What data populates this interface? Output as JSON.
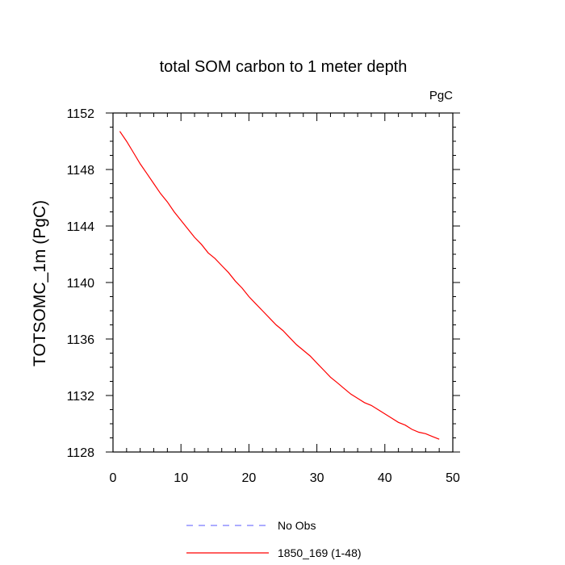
{
  "chart_data": {
    "type": "line",
    "title": "total SOM carbon to 1 meter depth",
    "units": "PgC",
    "xlabel": "",
    "ylabel": "TOTSOMC_1m  (PgC)",
    "xlim": [
      0,
      50
    ],
    "ylim": [
      1128,
      1152
    ],
    "xticks": [
      0,
      10,
      20,
      30,
      40,
      50
    ],
    "yticks": [
      1128,
      1132,
      1136,
      1140,
      1144,
      1148,
      1152
    ],
    "grid": false,
    "legend_position": "bottom",
    "series": [
      {
        "name": "No Obs",
        "color": "#7b7bff",
        "dash": true,
        "x": [],
        "values": []
      },
      {
        "name": "1850_169 (1-48)",
        "color": "#ff0000",
        "dash": false,
        "x": [
          1,
          2,
          3,
          4,
          5,
          6,
          7,
          8,
          9,
          10,
          11,
          12,
          13,
          14,
          15,
          16,
          17,
          18,
          19,
          20,
          21,
          22,
          23,
          24,
          25,
          26,
          27,
          28,
          29,
          30,
          31,
          32,
          33,
          34,
          35,
          36,
          37,
          38,
          39,
          40,
          41,
          42,
          43,
          44,
          45,
          46,
          47,
          48
        ],
        "values": [
          1150.7,
          1150.0,
          1149.2,
          1148.4,
          1147.7,
          1147.0,
          1146.3,
          1145.7,
          1145.0,
          1144.4,
          1143.8,
          1143.2,
          1142.7,
          1142.1,
          1141.7,
          1141.2,
          1140.7,
          1140.1,
          1139.6,
          1139.0,
          1138.5,
          1138.0,
          1137.5,
          1137.0,
          1136.6,
          1136.1,
          1135.6,
          1135.2,
          1134.8,
          1134.3,
          1133.8,
          1133.3,
          1132.9,
          1132.5,
          1132.1,
          1131.8,
          1131.5,
          1131.3,
          1131.0,
          1130.7,
          1130.4,
          1130.1,
          1129.9,
          1129.6,
          1129.4,
          1129.3,
          1129.1,
          1128.9
        ]
      }
    ]
  }
}
